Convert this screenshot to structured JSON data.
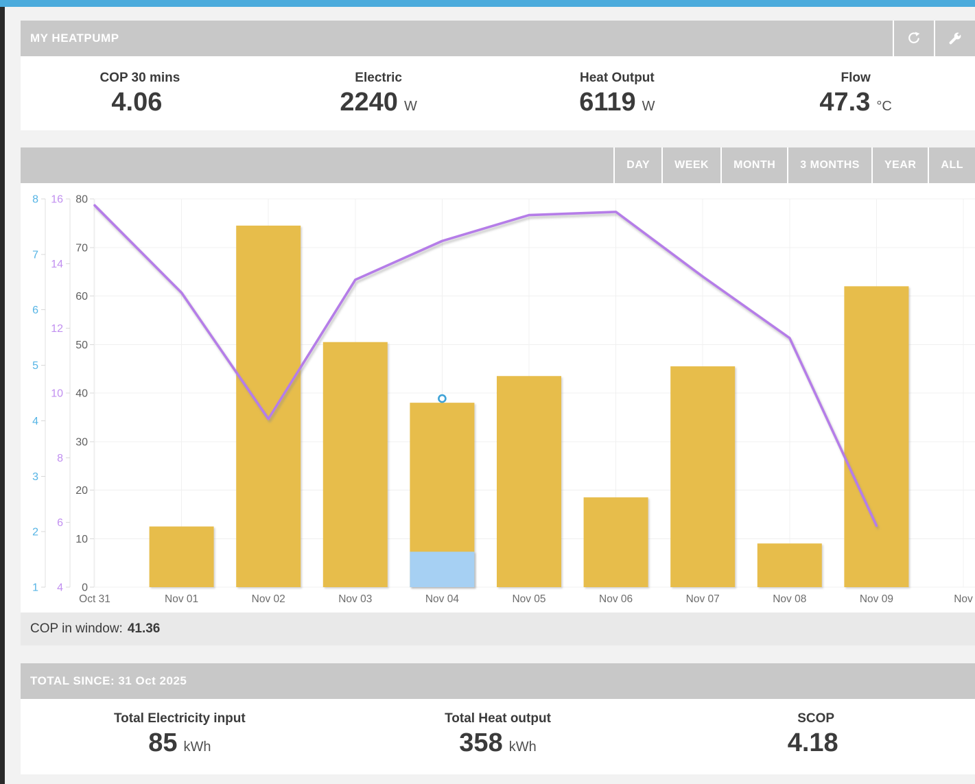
{
  "header": {
    "title": "MY HEATPUMP",
    "icons": [
      {
        "name": "export-icon"
      },
      {
        "name": "wrench-icon"
      }
    ]
  },
  "stats": [
    {
      "label": "COP 30 mins",
      "value": "4.06",
      "unit": ""
    },
    {
      "label": "Electric",
      "value": "2240",
      "unit": "W"
    },
    {
      "label": "Heat Output",
      "value": "6119",
      "unit": "W"
    },
    {
      "label": "Flow",
      "value": "47.3",
      "unit": "°C"
    }
  ],
  "toolbar": {
    "buttons": [
      "DAY",
      "WEEK",
      "MONTH",
      "3 MONTHS",
      "YEAR",
      "ALL"
    ]
  },
  "chart_data": {
    "type": "bar",
    "title": "",
    "x_labels": [
      "Oct 31",
      "Nov 01",
      "Nov 02",
      "Nov 03",
      "Nov 04",
      "Nov 05",
      "Nov 06",
      "Nov 07",
      "Nov 08",
      "Nov 09",
      "Nov"
    ],
    "grid": true,
    "legend": false,
    "axes": {
      "blue": {
        "side": "left",
        "min": 1,
        "max": 8,
        "ticks": [
          1,
          2,
          3,
          4,
          5,
          6,
          7,
          8
        ],
        "color": "#55b4e5"
      },
      "purple": {
        "side": "left",
        "min": 4,
        "max": 16,
        "ticks": [
          4,
          6,
          8,
          10,
          12,
          14,
          16
        ],
        "color": "#c18ff0"
      },
      "black": {
        "side": "left",
        "min": 0,
        "max": 80,
        "ticks": [
          0,
          10,
          20,
          30,
          40,
          50,
          60,
          70,
          80
        ],
        "color": "#606060"
      }
    },
    "series": [
      {
        "name": "yellow-bars",
        "type": "bar",
        "axis": "black",
        "color": "#e7bd4c",
        "values": [
          null,
          12.5,
          74.5,
          50.5,
          38,
          43.5,
          18.5,
          45.5,
          9,
          62,
          null
        ]
      },
      {
        "name": "blue-bar",
        "type": "bar",
        "axis": "black",
        "color": "#a6d0f3",
        "values": [
          null,
          null,
          null,
          null,
          7.3,
          null,
          null,
          null,
          null,
          null,
          null
        ]
      },
      {
        "name": "purple-line",
        "type": "line",
        "axis": "purple",
        "color": "#b57de8",
        "values": [
          15.8,
          13.1,
          9.2,
          13.5,
          14.7,
          15.5,
          15.6,
          13.6,
          11.7,
          5.9,
          null
        ]
      },
      {
        "name": "blue-point-marker",
        "type": "point",
        "axis": "blue",
        "color": "#3fa3d7",
        "x_index": 4,
        "value": 4.4
      }
    ],
    "xlabel": "",
    "ylabel": ""
  },
  "cop_window": {
    "label": "COP in window:",
    "value": "41.36"
  },
  "totals": {
    "title": "TOTAL SINCE: 31 Oct 2025",
    "stats": [
      {
        "label": "Total Electricity input",
        "value": "85",
        "unit": "kWh"
      },
      {
        "label": "Total Heat output",
        "value": "358",
        "unit": "kWh"
      },
      {
        "label": "SCOP",
        "value": "4.18",
        "unit": ""
      }
    ]
  }
}
